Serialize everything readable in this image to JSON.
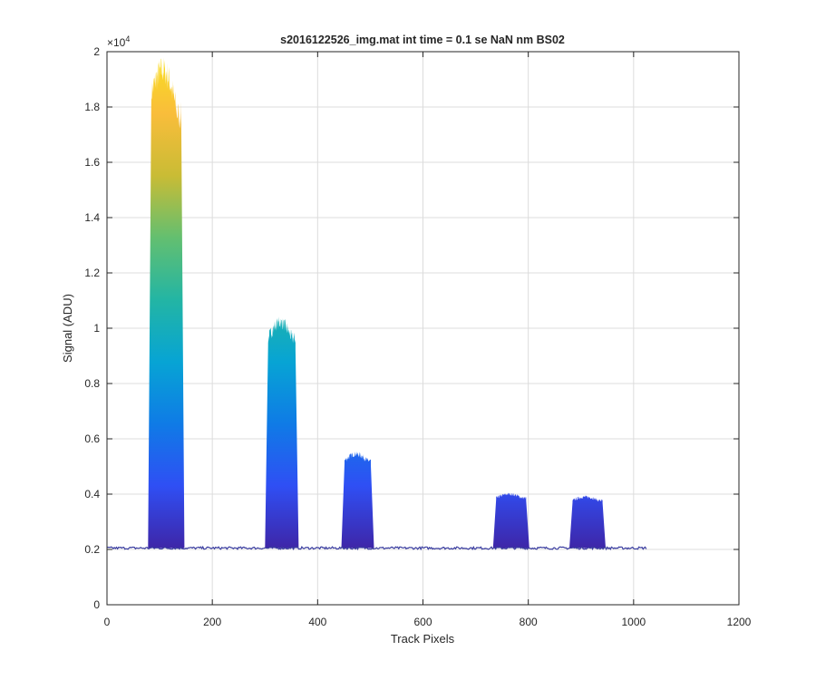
{
  "chart_data": {
    "type": "area",
    "title": "s2016122526_img.mat int time = 0.1 se  NaN nm BS02",
    "xlabel": "Track Pixels",
    "ylabel": "Signal (ADU)",
    "xlim": [
      0,
      1200
    ],
    "ylim": [
      0,
      20000
    ],
    "y_exponent_label": "×10",
    "y_exponent_power": "4",
    "xticks": [
      0,
      200,
      400,
      600,
      800,
      1000,
      1200
    ],
    "xtick_labels": [
      "0",
      "200",
      "400",
      "600",
      "800",
      "1000",
      "1200"
    ],
    "yticks": [
      0,
      2000,
      4000,
      6000,
      8000,
      10000,
      12000,
      14000,
      16000,
      18000,
      20000
    ],
    "ytick_labels": [
      "0",
      "0.2",
      "0.4",
      "0.6",
      "0.8",
      "1",
      "1.2",
      "1.4",
      "1.6",
      "1.8",
      "2"
    ],
    "grid": true,
    "baseline": 2050,
    "x_max": 1024,
    "colormap": [
      "#3e26a8",
      "#2f4ff4",
      "#0f7be6",
      "#07a4d4",
      "#23b5a4",
      "#63bf70",
      "#c9bc35",
      "#f9bd3b",
      "#f9e21e"
    ],
    "line_color": "#3a3da0",
    "peaks": [
      {
        "x_start": 80,
        "x_end": 145,
        "peak_value": 19700
      },
      {
        "x_start": 302,
        "x_end": 362,
        "peak_value": 10200
      },
      {
        "x_start": 447,
        "x_end": 505,
        "peak_value": 5450
      },
      {
        "x_start": 735,
        "x_end": 800,
        "peak_value": 4000
      },
      {
        "x_start": 880,
        "x_end": 945,
        "peak_value": 3900
      }
    ]
  }
}
